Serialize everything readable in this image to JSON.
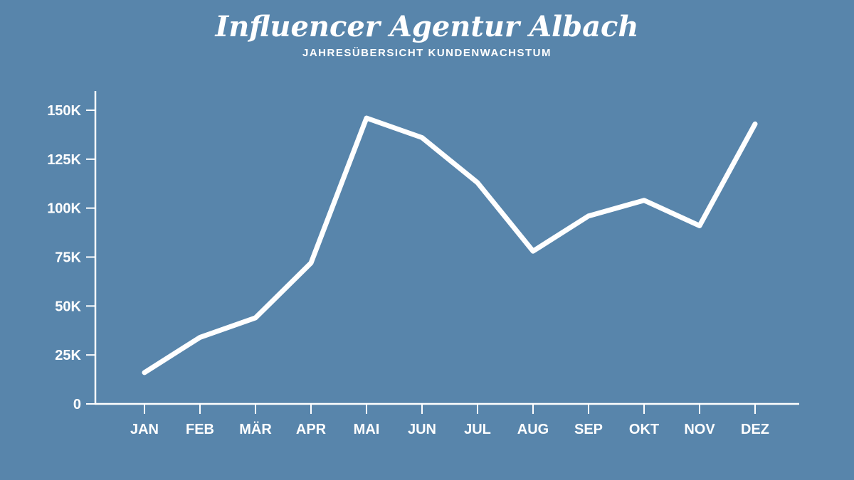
{
  "page": {
    "background_color": "#5885ab",
    "foreground_color": "#ffffff"
  },
  "header": {
    "title": "Influencer Agentur Albach",
    "subtitle": "JAHRESÜBERSICHT KUNDENWACHSTUM"
  },
  "chart_data": {
    "type": "line",
    "title": "Influencer Agentur Albach",
    "subtitle": "JAHRESÜBERSICHT KUNDENWACHSTUM",
    "categories": [
      "JAN",
      "FEB",
      "MÄR",
      "APR",
      "MAI",
      "JUN",
      "JUL",
      "AUG",
      "SEP",
      "OKT",
      "NOV",
      "DEZ"
    ],
    "series": [
      {
        "name": "Kundenwachstum",
        "values": [
          16000,
          34000,
          44000,
          72000,
          146000,
          136000,
          113000,
          78000,
          96000,
          104000,
          91000,
          143000
        ]
      }
    ],
    "xlabel": "",
    "ylabel": "",
    "ylim": [
      0,
      150000
    ],
    "y_ticks": [
      0,
      25000,
      50000,
      75000,
      100000,
      125000,
      150000
    ],
    "y_tick_labels": [
      "0",
      "25K",
      "50K",
      "75K",
      "100K",
      "125K",
      "150K"
    ],
    "grid": false,
    "legend": false,
    "line_color": "#ffffff",
    "axis_color": "#ffffff",
    "line_width": 7
  }
}
